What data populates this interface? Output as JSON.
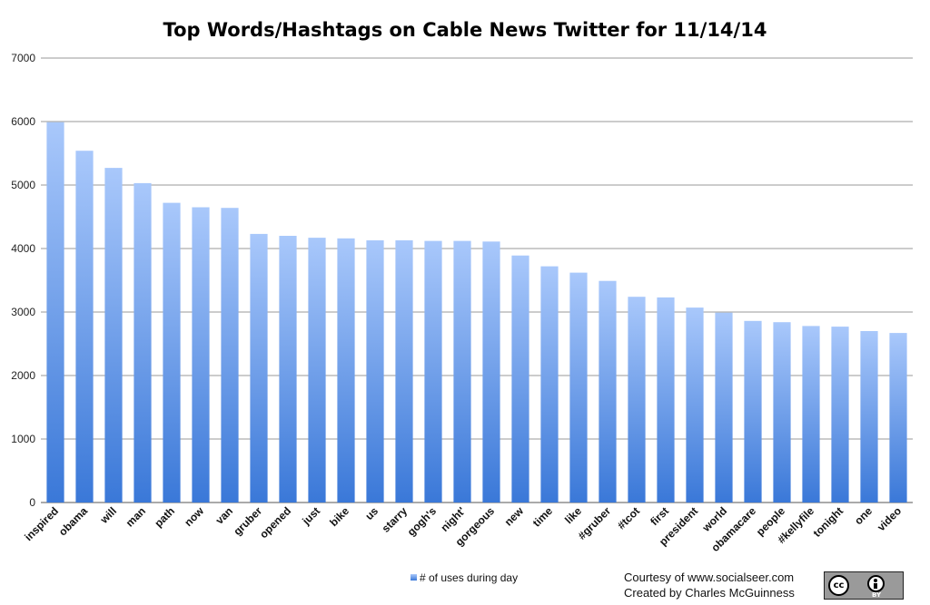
{
  "chart_data": {
    "type": "bar",
    "title": "Top Words/Hashtags on Cable News Twitter for 11/14/14",
    "xlabel": "",
    "ylabel": "",
    "ylim": [
      0,
      7000
    ],
    "yticks": [
      0,
      1000,
      2000,
      3000,
      4000,
      5000,
      6000,
      7000
    ],
    "grid": true,
    "legend_position": "bottom",
    "series_color": "#5b8fd9",
    "categories": [
      "inspired",
      "obama",
      "will",
      "man",
      "path",
      "now",
      "van",
      "gruber",
      "opened",
      "just",
      "bike",
      "us",
      "starry",
      "gogh's",
      "night'",
      "gorgeous",
      "new",
      "time",
      "like",
      "#gruber",
      "#tcot",
      "first",
      "president",
      "world",
      "obamacare",
      "people",
      "#kellyfile",
      "tonight",
      "one",
      "video"
    ],
    "series": [
      {
        "name": "# of uses during day",
        "values": [
          5990,
          5540,
          5270,
          5030,
          4720,
          4650,
          4640,
          4230,
          4200,
          4170,
          4160,
          4130,
          4130,
          4120,
          4120,
          4110,
          3890,
          3720,
          3620,
          3490,
          3240,
          3230,
          3070,
          2990,
          2860,
          2840,
          2780,
          2770,
          2700,
          2670
        ]
      }
    ]
  },
  "credits": {
    "line1": "Courtesy of www.socialseer.com",
    "line2": "Created by Charles McGuinness"
  },
  "license_badge": {
    "icon": "cc-by-badge",
    "cc_label": "cc",
    "by_label": "BY",
    "color": "#9a9a9a"
  }
}
